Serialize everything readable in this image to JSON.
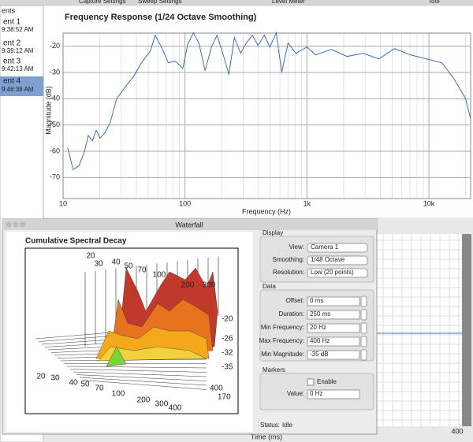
{
  "toolbar": [
    "Capture Settings",
    "Sweep Settings",
    "Level Meter",
    "Tool"
  ],
  "sidebar": {
    "header": "ents",
    "items": [
      {
        "name": "ent 1",
        "time": "9:38:52 AM"
      },
      {
        "name": "ent 2",
        "time": "9:39:12 AM"
      },
      {
        "name": "ent 3",
        "time": "9:42:13 AM"
      },
      {
        "name": "ent 4",
        "time": "9:46:38 AM"
      }
    ]
  },
  "chart_data": {
    "type": "line",
    "title": "Frequency Response (1/24 Octave Smoothing)",
    "x_label": "Frequency (Hz)",
    "y_label": "Magnitude (dB)",
    "log_x": true,
    "grid": true,
    "xlim": [
      10,
      22000
    ],
    "xticks": [
      10,
      100,
      {
        "value": 1000,
        "label": "1k"
      },
      {
        "value": 10000,
        "label": "10k"
      }
    ],
    "ylim": [
      -78,
      -15
    ],
    "yticks": [
      -20,
      -30,
      -40,
      -50,
      -60,
      -70
    ],
    "series": [
      {
        "color": "#3d6fb0",
        "x": [
          10.9,
          12.1,
          13.5,
          15.0,
          16.1,
          17.4,
          18.7,
          20.1,
          22.0,
          24.4,
          27.5,
          33,
          38,
          44,
          52,
          57,
          64,
          73,
          83,
          96,
          105,
          117,
          130,
          146,
          165,
          183,
          206,
          229,
          254,
          286,
          318,
          357,
          397,
          447,
          497,
          560,
          621,
          700,
          811,
          1000,
          1178,
          1585,
          2138,
          2884,
          3882,
          5224,
          7047,
          9486,
          12790,
          16000,
          20000,
          21900
        ],
        "values": [
          -58.6,
          -67,
          -65.5,
          -60,
          -54,
          -56,
          -52,
          -55,
          -53,
          -49,
          -40,
          -35,
          -31.4,
          -26.3,
          -21.8,
          -15.8,
          -20.3,
          -26.3,
          -25.7,
          -28.4,
          -19.4,
          -14.9,
          -18.8,
          -29.3,
          -20.3,
          -15.8,
          -23.3,
          -30.8,
          -16.7,
          -22.7,
          -18.8,
          -15.8,
          -19.7,
          -15.8,
          -20.3,
          -14.9,
          -29.9,
          -18.8,
          -22.7,
          -20.3,
          -23.3,
          -21.2,
          -23.9,
          -22.7,
          -24.8,
          -20.9,
          -23.3,
          -24.8,
          -26.3,
          -32.3,
          -39.9,
          -47.4
        ]
      }
    ]
  },
  "background": {
    "x_tick": "400",
    "x_label": "Time (ms)"
  },
  "waterfall": {
    "window_title": "Waterfall",
    "plot_title": "Cumulative Spectral Decay",
    "top_labels": [
      "30",
      "40",
      "50",
      "70",
      "100",
      "200",
      "300"
    ],
    "left_label": "20",
    "front_labels": [
      "20",
      "30",
      "40",
      "50",
      "70",
      "100",
      "200",
      "300",
      "400"
    ],
    "depth_labels": [
      "400",
      "170"
    ],
    "db_labels": [
      "-20",
      "-26",
      "-32",
      "-35"
    ],
    "display": {
      "title": "Display",
      "rows": [
        [
          "View:",
          "Camera 1"
        ],
        [
          "Smoothing:",
          "1/48 Octave"
        ],
        [
          "Resolution:",
          "Low (20 points)"
        ]
      ]
    },
    "data": {
      "title": "Data",
      "rows": [
        [
          "Offset:",
          "0 ms"
        ],
        [
          "Duration:",
          "250 ms"
        ],
        [
          "Min Frequency:",
          "20 Hz"
        ],
        [
          "Max Frequency:",
          "400 Hz"
        ],
        [
          "Min Magnitude:",
          "-35 dB"
        ]
      ]
    },
    "markers": {
      "title": "Markers",
      "enable": "Enable",
      "value_label": "Value:",
      "value": "0 Hz"
    },
    "status": {
      "label": "Status:",
      "value": "Idle"
    }
  }
}
